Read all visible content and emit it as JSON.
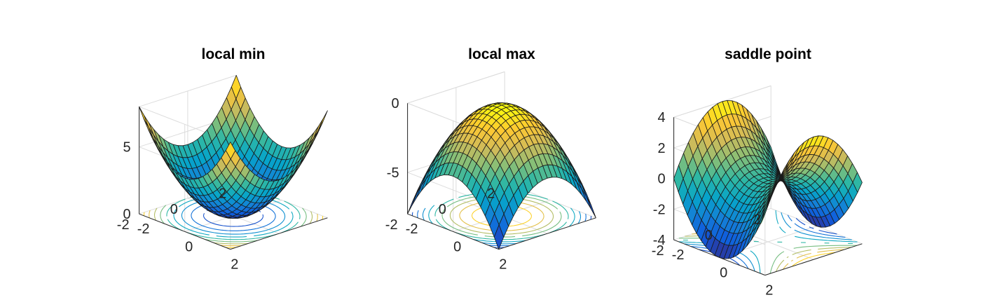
{
  "chart_data": [
    {
      "type": "surface",
      "title": "local min",
      "function": "x^2 + y^2",
      "x": [
        -2,
        2
      ],
      "y": [
        -2,
        2
      ],
      "zlim": [
        0,
        8
      ],
      "ticks": {
        "x": [
          "-2",
          "0",
          "2"
        ],
        "y": [
          "-2",
          "0",
          "2"
        ],
        "z": [
          "0",
          "5"
        ]
      },
      "contour": true,
      "grid": true
    },
    {
      "type": "surface",
      "title": "local max",
      "function": "-(x^2 + y^2)",
      "x": [
        -2,
        2
      ],
      "y": [
        -2,
        2
      ],
      "zlim": [
        -8,
        0
      ],
      "ticks": {
        "x": [
          "-2",
          "0",
          "2"
        ],
        "y": [
          "-2",
          "0",
          "2"
        ],
        "z": [
          "-5",
          "0"
        ]
      },
      "contour": true,
      "grid": true
    },
    {
      "type": "surface",
      "title": "saddle point",
      "function": "x^2 - y^2",
      "x": [
        -2,
        2
      ],
      "y": [
        -2,
        2
      ],
      "zlim": [
        -4,
        4
      ],
      "ticks": {
        "x": [
          "-2",
          "0",
          "2"
        ],
        "y": [
          "-2",
          "0",
          "2"
        ],
        "z": [
          "-4",
          "-2",
          "0",
          "2",
          "4"
        ]
      },
      "contour": true,
      "grid": true
    }
  ],
  "colors": {
    "parula": [
      "#352a87",
      "#0f5cdd",
      "#1481d6",
      "#06a4ca",
      "#2eb7a4",
      "#87bf77",
      "#d1bb59",
      "#fec832",
      "#f9fb0e"
    ],
    "mesh_edge": "#1a1a1a",
    "grid": "#dcdcdc",
    "axis": "#262626"
  }
}
